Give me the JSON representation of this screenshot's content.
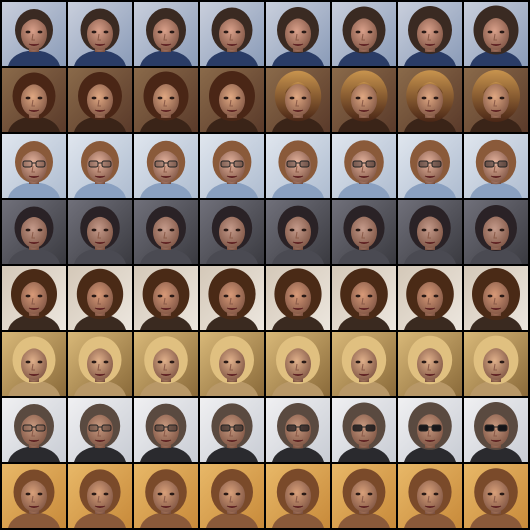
{
  "grid": {
    "rows": 8,
    "cols": 8,
    "subjects": [
      {
        "bg": "#8a9bb8",
        "bg2": "#c9cfdc",
        "hair": "#3a2a22",
        "skin": "#d9a08a",
        "shirt": "#2a3c66",
        "glasses": false,
        "hairVol": [
          0.3,
          0.35,
          0.4,
          0.45,
          0.5,
          0.55,
          0.6,
          0.65
        ],
        "glassesDark": 0
      },
      {
        "bg": "#5a3a2a",
        "bg2": "#8a6a4a",
        "hair": "#4a2616",
        "hair2": "#c8944e",
        "skin": "#e0a882",
        "shirt": "#3a2418",
        "glasses": false,
        "hairVol": [
          0.55,
          0.6,
          0.65,
          0.7,
          0.72,
          0.75,
          0.78,
          0.8
        ],
        "glassesDark": 0
      },
      {
        "bg": "#aebcd0",
        "bg2": "#e0e6ee",
        "hair": "#8a5a3a",
        "skin": "#e6b49e",
        "shirt": "#8aa0c0",
        "glasses": true,
        "hairVol": [
          0.3,
          0.3,
          0.32,
          0.34,
          0.36,
          0.38,
          0.4,
          0.42
        ],
        "glassesDark": 0.3
      },
      {
        "bg": "#3a3a40",
        "bg2": "#70707a",
        "hair": "#2a2226",
        "skin": "#c49a8a",
        "shirt": "#4a4a52",
        "glasses": false,
        "hairVol": [
          0.35,
          0.38,
          0.4,
          0.42,
          0.44,
          0.46,
          0.48,
          0.5
        ],
        "glassesDark": 0
      },
      {
        "bg": "#ece6de",
        "bg2": "#d4c8b8",
        "hair": "#4a2a16",
        "skin": "#d89a78",
        "shirt": "#3a2a20",
        "glasses": false,
        "hairVol": [
          0.7,
          0.72,
          0.74,
          0.76,
          0.76,
          0.78,
          0.78,
          0.8
        ],
        "glassesDark": 0
      },
      {
        "bg": "#8a6a3a",
        "bg2": "#d8b878",
        "hair": "#e0c080",
        "skin": "#e0b08a",
        "shirt": "#b89868",
        "glasses": false,
        "hairVol": [
          0.55,
          0.55,
          0.58,
          0.6,
          0.6,
          0.62,
          0.62,
          0.64
        ],
        "glassesDark": 0
      },
      {
        "bg": "#c8ccd4",
        "bg2": "#f0f0f2",
        "hair": "#5a4a40",
        "skin": "#c89a80",
        "shirt": "#2a2a2e",
        "glasses": true,
        "hairVol": [
          0.4,
          0.42,
          0.44,
          0.46,
          0.5,
          0.55,
          0.58,
          0.6
        ],
        "glassesDark": 0.95
      },
      {
        "bg": "#c88a3a",
        "bg2": "#e8b868",
        "hair": "#7a4a2a",
        "skin": "#d8a07a",
        "shirt": "#8a5a3a",
        "glasses": false,
        "hairVol": [
          0.45,
          0.46,
          0.48,
          0.5,
          0.52,
          0.54,
          0.56,
          0.58
        ],
        "glassesDark": 0
      }
    ]
  }
}
